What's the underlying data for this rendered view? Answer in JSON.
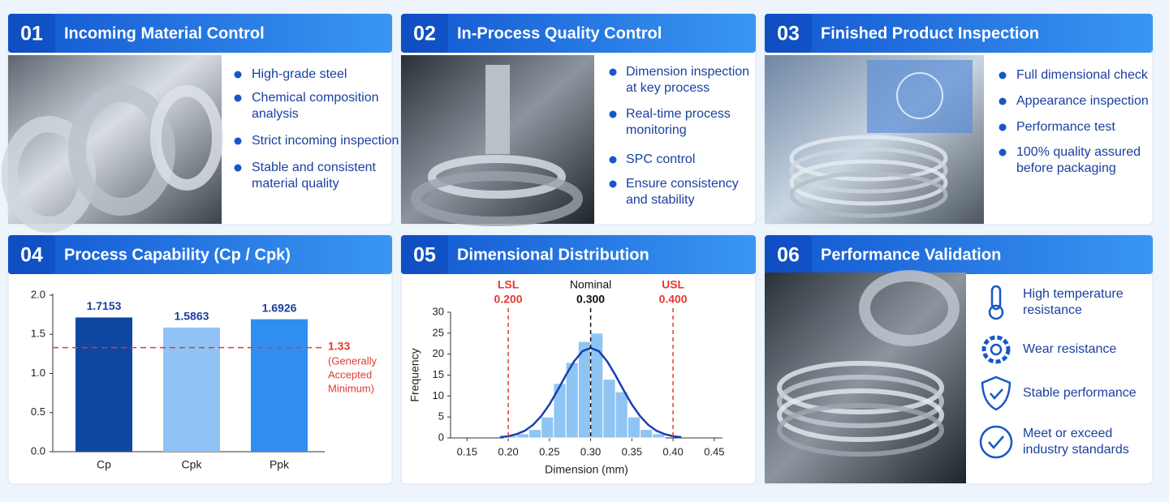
{
  "panels": [
    {
      "number": "01",
      "title": "Incoming Material Control",
      "items": [
        [
          "High-grade steel"
        ],
        [
          "Chemical composition",
          "analysis"
        ],
        [
          "Strict incoming inspection"
        ],
        [
          "Stable and consistent",
          "material quality"
        ]
      ]
    },
    {
      "number": "02",
      "title": "In-Process Quality Control",
      "items": [
        [
          "Dimension inspection",
          "at key process"
        ],
        [
          "Real-time process",
          "monitoring"
        ],
        [
          "SPC control"
        ],
        [
          "Ensure consistency",
          "and stability"
        ]
      ]
    },
    {
      "number": "03",
      "title": "Finished Product Inspection",
      "items": [
        [
          "Full dimensional check"
        ],
        [
          "Appearance inspection"
        ],
        [
          "Performance test"
        ],
        [
          "100% quality assured",
          "before packaging"
        ]
      ]
    },
    {
      "number": "04",
      "title": "Process Capability (Cp / Cpk)"
    },
    {
      "number": "05",
      "title": "Dimensional Distribution"
    },
    {
      "number": "06",
      "title": "Performance Validation",
      "items": [
        [
          "High temperature",
          "resistance"
        ],
        [
          "Wear resistance"
        ],
        [
          "Stable performance"
        ],
        [
          "Meet or exceed",
          "industry standards"
        ]
      ]
    }
  ],
  "chart_data": [
    {
      "type": "bar",
      "categories": [
        "Cp",
        "Cpk",
        "Ppk"
      ],
      "values": [
        1.7153,
        1.5863,
        1.6926
      ],
      "colors": [
        "#0d47a1",
        "#90c2f5",
        "#2f8ef0"
      ],
      "ylim": [
        0,
        2
      ],
      "yticks": [
        {
          "value": 0,
          "label": "0.0"
        },
        0.5,
        {
          "value": 1,
          "label": "1.0"
        },
        1.5,
        {
          "value": 2,
          "label": "2.0"
        }
      ],
      "reference_line": {
        "value": 1.33,
        "note": [
          "(Generally",
          "Accepted",
          "Minimum)"
        ],
        "color": "#e53935"
      }
    },
    {
      "type": "histogram",
      "xlabel": "Dimension (mm)",
      "ylabel": "Frequency",
      "bins": [
        0.195,
        0.21,
        0.225,
        0.24,
        0.255,
        0.27,
        0.285,
        0.3,
        0.315,
        0.33,
        0.345,
        0.36,
        0.375,
        0.39
      ],
      "values": [
        0.5,
        1,
        2,
        5,
        13,
        18,
        23,
        25,
        14,
        11,
        5,
        2,
        1
      ],
      "color": "#8ec5f3",
      "curve": {
        "color": "#1a3fb0",
        "x": [
          0.19,
          0.2,
          0.21,
          0.22,
          0.23,
          0.24,
          0.25,
          0.26,
          0.27,
          0.28,
          0.29,
          0.3,
          0.31,
          0.32,
          0.33,
          0.34,
          0.35,
          0.36,
          0.37,
          0.38,
          0.39,
          0.4,
          0.41
        ],
        "values": [
          0.2,
          0.4,
          0.9,
          1.7,
          3.1,
          5.2,
          8.0,
          11.4,
          15.0,
          18.3,
          20.7,
          21.5,
          20.7,
          18.3,
          15.0,
          11.4,
          8.0,
          5.2,
          3.1,
          1.7,
          0.9,
          0.4,
          0.2
        ]
      },
      "reference_lines": [
        {
          "name": "LSL",
          "value": 0.2,
          "label": "0.200",
          "color": "#e53935"
        },
        {
          "name": "Nominal",
          "value": 0.3,
          "label": "0.300",
          "color": "#111111"
        },
        {
          "name": "USL",
          "value": 0.4,
          "label": "0.400",
          "color": "#e53935"
        }
      ],
      "xlim": [
        0.13,
        0.46
      ],
      "xticks": [
        0.15,
        {
          "value": 0.2,
          "label": "0.20"
        },
        0.25,
        {
          "value": 0.3,
          "label": "0.30"
        },
        0.35,
        {
          "value": 0.4,
          "label": "0.40"
        },
        0.45
      ],
      "ylim": [
        0,
        30
      ],
      "yticks": [
        0,
        5,
        10,
        15,
        20,
        25,
        30
      ]
    }
  ]
}
